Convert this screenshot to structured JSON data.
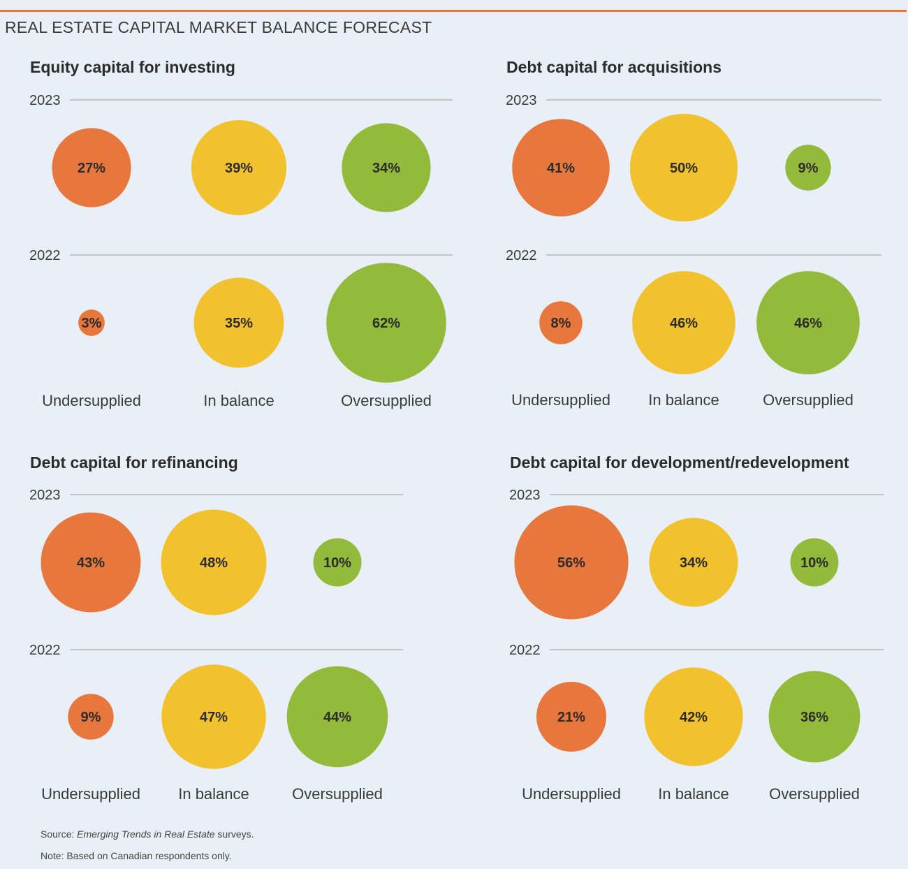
{
  "page": {
    "title": "REAL ESTATE CAPITAL MARKET BALANCE FORECAST",
    "source_prefix": "Source: ",
    "source_italic": "Emerging Trends in Real Estate",
    "source_suffix": " surveys.",
    "note": "Note: Based on Canadian respondents only."
  },
  "colors": {
    "undersupplied": "#e8773d",
    "in_balance": "#f2c12e",
    "oversupplied": "#93ba3a",
    "rule": "#9a9a9a",
    "accent": "#e8773d"
  },
  "chart_data": [
    {
      "type": "bubble",
      "title": "Equity capital for investing",
      "categories": [
        "Undersupplied",
        "In balance",
        "Oversupplied"
      ],
      "series": [
        {
          "name": "2023",
          "values": [
            27,
            39,
            34
          ]
        },
        {
          "name": "2022",
          "values": [
            3,
            35,
            62
          ]
        }
      ]
    },
    {
      "type": "bubble",
      "title": "Debt capital for acquisitions",
      "categories": [
        "Undersupplied",
        "In balance",
        "Oversupplied"
      ],
      "series": [
        {
          "name": "2023",
          "values": [
            41,
            50,
            9
          ]
        },
        {
          "name": "2022",
          "values": [
            8,
            46,
            46
          ]
        }
      ]
    },
    {
      "type": "bubble",
      "title": "Debt capital for refinancing",
      "categories": [
        "Undersupplied",
        "In balance",
        "Oversupplied"
      ],
      "series": [
        {
          "name": "2023",
          "values": [
            43,
            48,
            10
          ]
        },
        {
          "name": "2022",
          "values": [
            9,
            47,
            44
          ]
        }
      ]
    },
    {
      "type": "bubble",
      "title": "Debt capital for development/redevelopment",
      "categories": [
        "Undersupplied",
        "In balance",
        "Oversupplied"
      ],
      "series": [
        {
          "name": "2023",
          "values": [
            56,
            34,
            10
          ]
        },
        {
          "name": "2022",
          "values": [
            21,
            42,
            36
          ]
        }
      ]
    }
  ]
}
